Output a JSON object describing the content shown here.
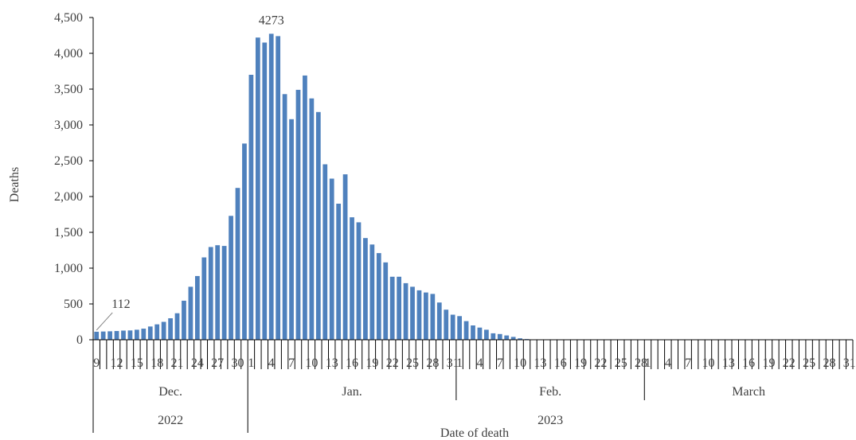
{
  "chart_data": {
    "type": "bar",
    "ylabel": "Deaths",
    "xlabel": "Date of death",
    "ylim": [
      0,
      4500
    ],
    "yticks": [
      0,
      500,
      1000,
      1500,
      2000,
      2500,
      3000,
      3500,
      4000,
      4500
    ],
    "ytick_labels": [
      "0",
      "500",
      "1,000",
      "1,500",
      "2,000",
      "2,500",
      "3,000",
      "3,500",
      "4,000",
      "4,500"
    ],
    "grid": false,
    "bar_color": "#4f81bd",
    "annotations": [
      {
        "text": "112",
        "x": "2022-12-09",
        "y": 112
      },
      {
        "text": "4273",
        "x": "2023-01-04",
        "y": 4273
      }
    ],
    "categories": [
      "2022-12-09",
      "2022-12-10",
      "2022-12-11",
      "2022-12-12",
      "2022-12-13",
      "2022-12-14",
      "2022-12-15",
      "2022-12-16",
      "2022-12-17",
      "2022-12-18",
      "2022-12-19",
      "2022-12-20",
      "2022-12-21",
      "2022-12-22",
      "2022-12-23",
      "2022-12-24",
      "2022-12-25",
      "2022-12-26",
      "2022-12-27",
      "2022-12-28",
      "2022-12-29",
      "2022-12-30",
      "2022-12-31",
      "2023-01-01",
      "2023-01-02",
      "2023-01-03",
      "2023-01-04",
      "2023-01-05",
      "2023-01-06",
      "2023-01-07",
      "2023-01-08",
      "2023-01-09",
      "2023-01-10",
      "2023-01-11",
      "2023-01-12",
      "2023-01-13",
      "2023-01-14",
      "2023-01-15",
      "2023-01-16",
      "2023-01-17",
      "2023-01-18",
      "2023-01-19",
      "2023-01-20",
      "2023-01-21",
      "2023-01-22",
      "2023-01-23",
      "2023-01-24",
      "2023-01-25",
      "2023-01-26",
      "2023-01-27",
      "2023-01-28",
      "2023-01-29",
      "2023-01-30",
      "2023-01-31",
      "2023-02-01",
      "2023-02-02",
      "2023-02-03",
      "2023-02-04",
      "2023-02-05",
      "2023-02-06",
      "2023-02-07",
      "2023-02-08",
      "2023-02-09",
      "2023-02-10",
      "2023-02-11",
      "2023-02-12",
      "2023-02-13",
      "2023-02-14",
      "2023-02-15",
      "2023-02-16",
      "2023-02-17",
      "2023-02-18",
      "2023-02-19",
      "2023-02-20",
      "2023-02-21",
      "2023-02-22",
      "2023-02-23",
      "2023-02-24",
      "2023-02-25",
      "2023-02-26",
      "2023-02-27",
      "2023-02-28",
      "2023-03-01",
      "2023-03-02",
      "2023-03-03",
      "2023-03-04",
      "2023-03-05",
      "2023-03-06",
      "2023-03-07",
      "2023-03-08",
      "2023-03-09",
      "2023-03-10",
      "2023-03-11",
      "2023-03-12",
      "2023-03-13",
      "2023-03-14",
      "2023-03-15",
      "2023-03-16",
      "2023-03-17",
      "2023-03-18",
      "2023-03-19",
      "2023-03-20",
      "2023-03-21",
      "2023-03-22",
      "2023-03-23",
      "2023-03-24",
      "2023-03-25",
      "2023-03-26",
      "2023-03-27",
      "2023-03-28",
      "2023-03-29",
      "2023-03-30",
      "2023-03-31"
    ],
    "values": [
      112,
      115,
      118,
      122,
      128,
      130,
      140,
      155,
      185,
      215,
      250,
      300,
      370,
      545,
      740,
      890,
      1150,
      1295,
      1320,
      1310,
      1730,
      2120,
      2740,
      3700,
      4220,
      4150,
      4273,
      4240,
      3430,
      3080,
      3490,
      3690,
      3370,
      3180,
      2450,
      2250,
      1900,
      2310,
      1710,
      1640,
      1420,
      1330,
      1210,
      1080,
      880,
      880,
      790,
      740,
      690,
      660,
      640,
      520,
      420,
      350,
      330,
      260,
      200,
      170,
      140,
      90,
      80,
      60,
      40,
      20,
      10,
      5,
      3,
      2,
      1,
      1,
      1,
      0,
      0,
      0,
      0,
      0,
      0,
      0,
      0,
      0,
      0,
      0,
      0,
      0,
      0,
      0,
      0,
      0,
      0,
      0,
      0,
      0,
      0,
      0,
      0,
      0,
      0,
      0,
      0,
      0,
      0,
      0,
      0,
      0,
      0,
      0,
      0,
      0,
      0,
      0,
      0,
      0,
      0
    ],
    "tick_every": 3,
    "months": [
      {
        "label": "Dec.",
        "start": "2022-12-09",
        "end": "2022-12-31"
      },
      {
        "label": "Jan.",
        "start": "2023-01-01",
        "end": "2023-01-31"
      },
      {
        "label": "Feb.",
        "start": "2023-02-01",
        "end": "2023-02-28"
      },
      {
        "label": "March",
        "start": "2023-03-01",
        "end": "2023-03-31"
      }
    ],
    "years": [
      {
        "label": "2022",
        "start": "2022-12-09",
        "end": "2022-12-31"
      },
      {
        "label": "2023",
        "start": "2023-01-01",
        "end": "2023-03-31"
      }
    ]
  }
}
